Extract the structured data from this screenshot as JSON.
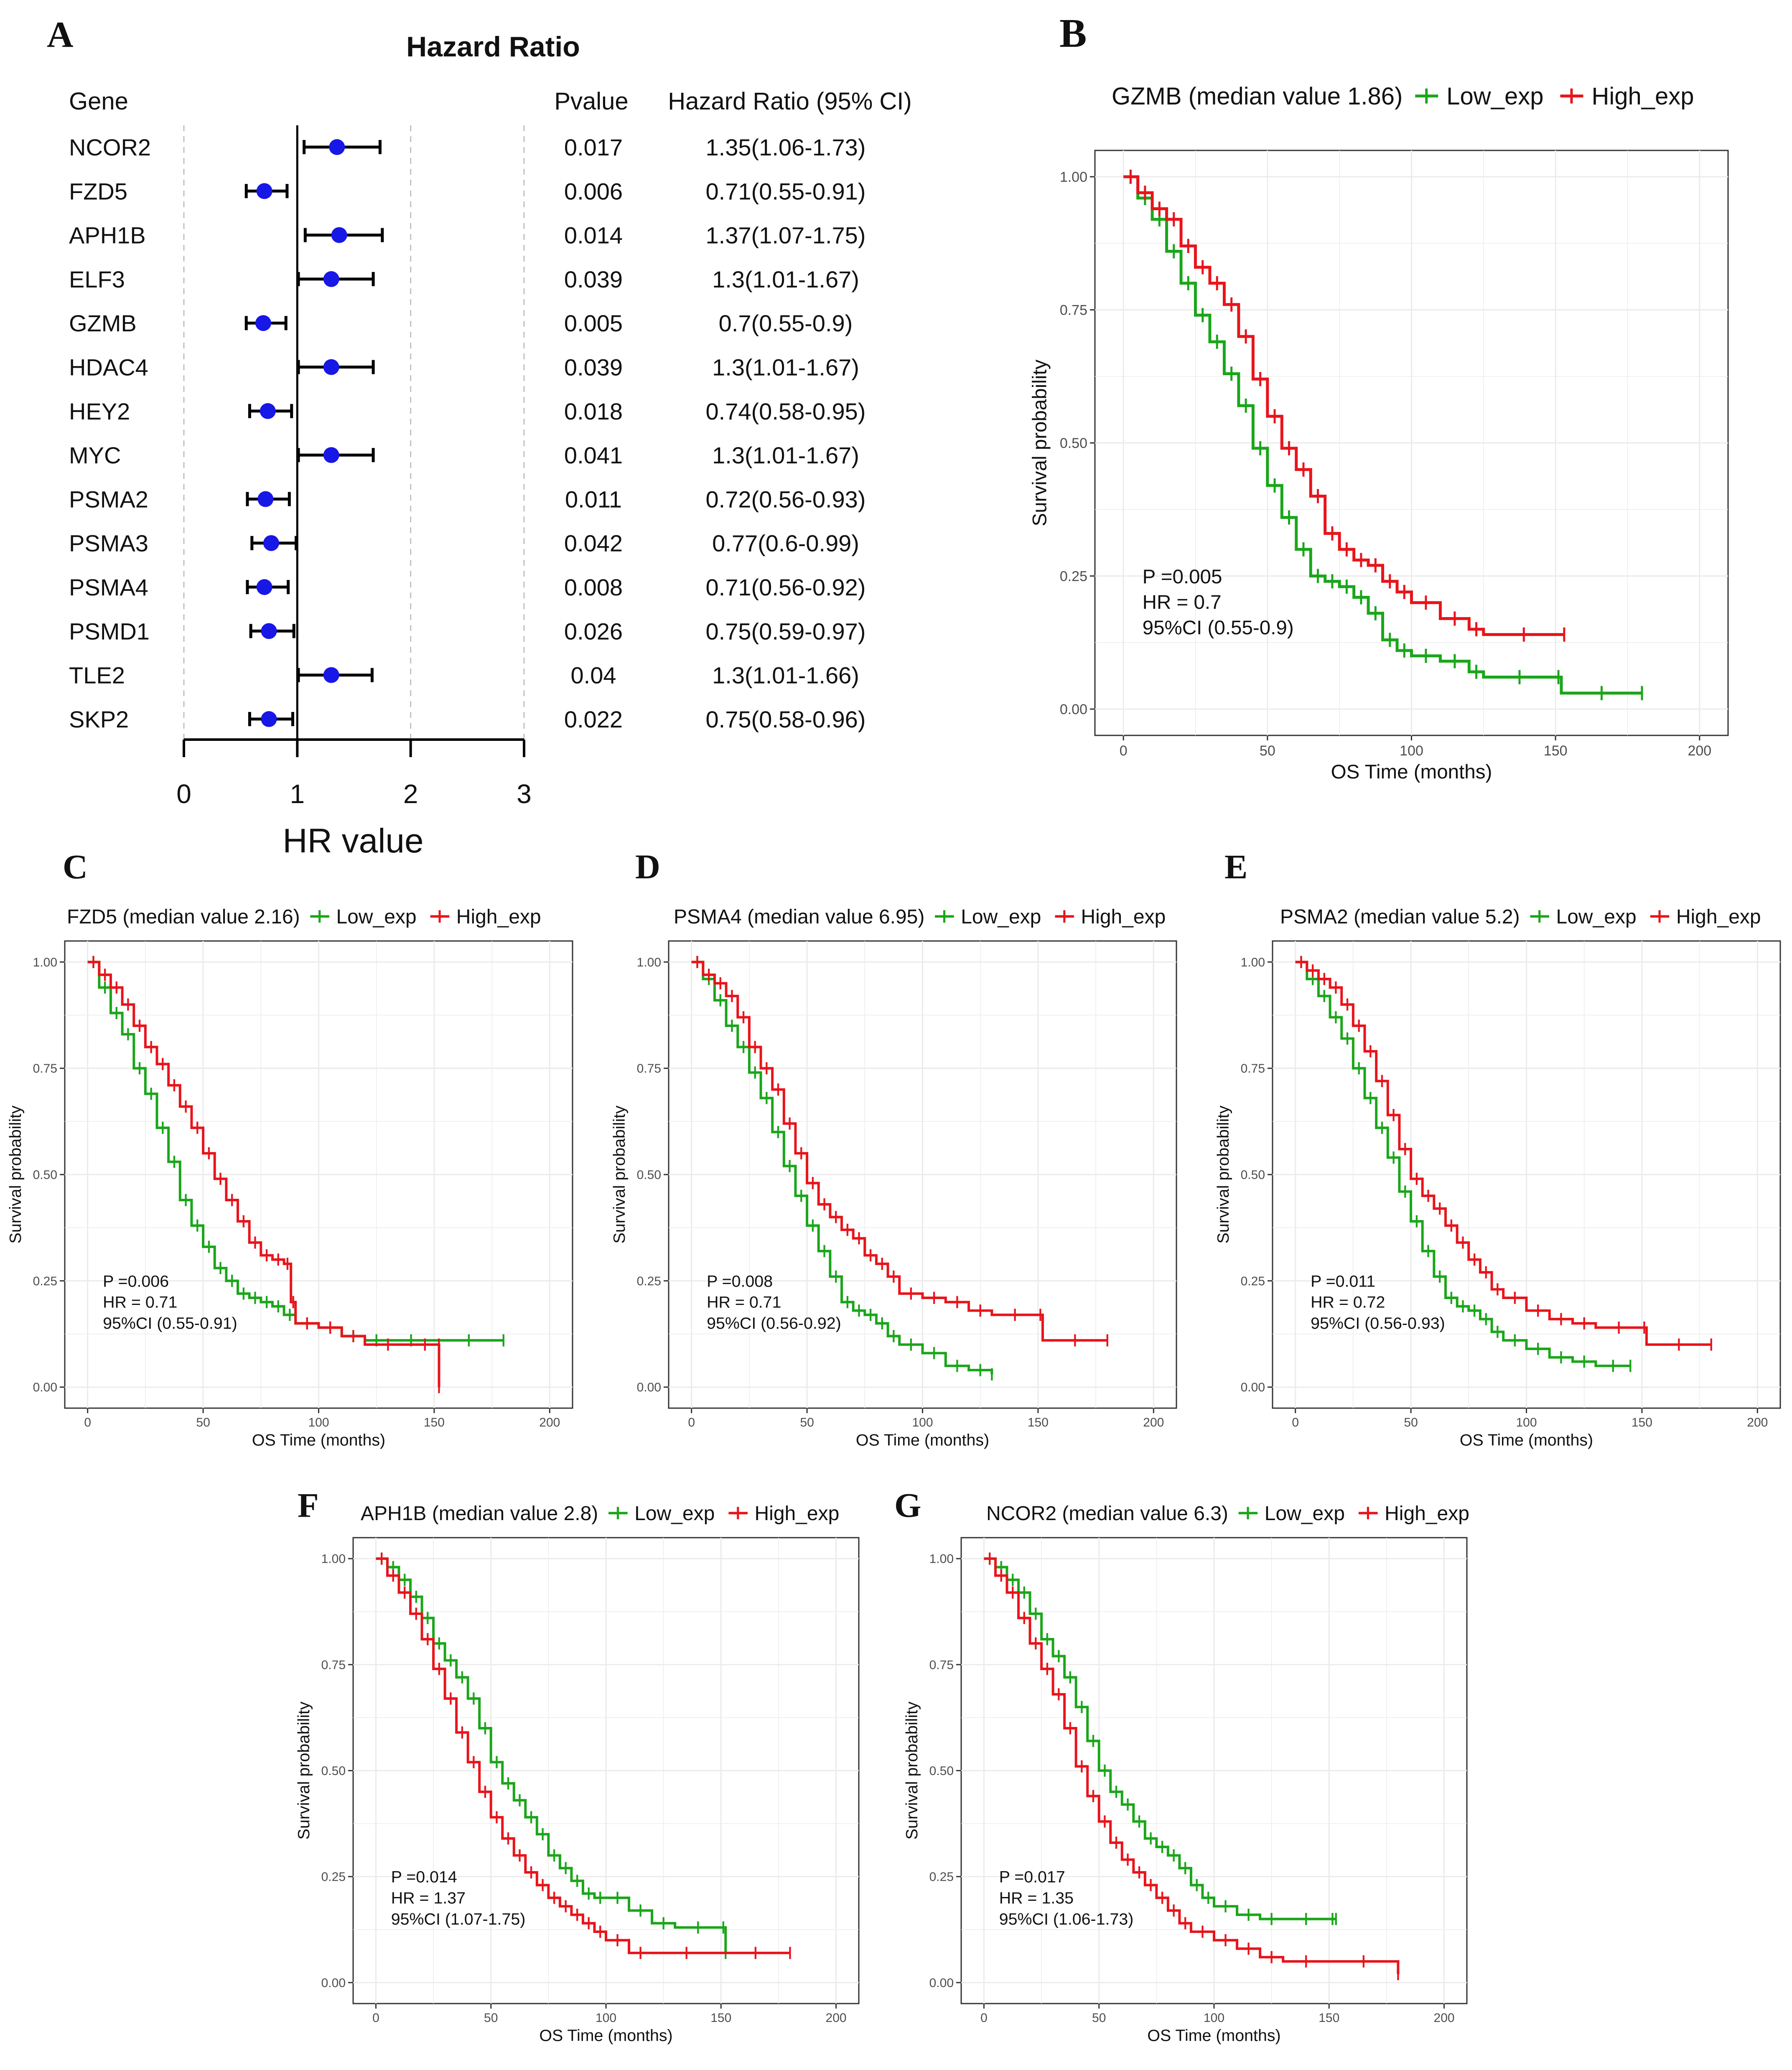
{
  "colors": {
    "low": "#1aa61a",
    "high": "#e8141b",
    "point": "#1717e6",
    "frame": "#333333",
    "grid": "#ebebeb",
    "axis_text": "#4d4d4d",
    "dashed": "#bfbfbf"
  },
  "forest": {
    "panel_letter": "A",
    "title": "Hazard Ratio",
    "col_gene": "Gene",
    "col_pvalue": "Pvalue",
    "col_hr": "Hazard Ratio (95% CI)",
    "xlabel": "HR value",
    "ticks": [
      "0",
      "1",
      "2",
      "3"
    ],
    "rows": [
      {
        "gene": "NCOR2",
        "pvalue": "0.017",
        "hr_text": "1.35(1.06-1.73)"
      },
      {
        "gene": "FZD5",
        "pvalue": "0.006",
        "hr_text": "0.71(0.55-0.91)"
      },
      {
        "gene": "APH1B",
        "pvalue": "0.014",
        "hr_text": "1.37(1.07-1.75)"
      },
      {
        "gene": "ELF3",
        "pvalue": "0.039",
        "hr_text": "1.3(1.01-1.67)"
      },
      {
        "gene": "GZMB",
        "pvalue": "0.005",
        "hr_text": "0.7(0.55-0.9)"
      },
      {
        "gene": "HDAC4",
        "pvalue": "0.039",
        "hr_text": "1.3(1.01-1.67)"
      },
      {
        "gene": "HEY2",
        "pvalue": "0.018",
        "hr_text": "0.74(0.58-0.95)"
      },
      {
        "gene": "MYC",
        "pvalue": "0.041",
        "hr_text": "1.3(1.01-1.67)"
      },
      {
        "gene": "PSMA2",
        "pvalue": "0.011",
        "hr_text": "0.72(0.56-0.93)"
      },
      {
        "gene": "PSMA3",
        "pvalue": "0.042",
        "hr_text": "0.77(0.6-0.99)"
      },
      {
        "gene": "PSMA4",
        "pvalue": "0.008",
        "hr_text": "0.71(0.56-0.92)"
      },
      {
        "gene": "PSMD1",
        "pvalue": "0.026",
        "hr_text": "0.75(0.59-0.97)"
      },
      {
        "gene": "TLE2",
        "pvalue": "0.04",
        "hr_text": "1.3(1.01-1.66)"
      },
      {
        "gene": "SKP2",
        "pvalue": "0.022",
        "hr_text": "0.75(0.58-0.96)"
      }
    ]
  },
  "km_common": {
    "xlabel": "OS Time (months)",
    "ylabel": "Survival probability",
    "low_label": "Low_exp",
    "high_label": "High_exp",
    "xticks": [
      "0",
      "50",
      "100",
      "150",
      "200"
    ],
    "yticks": [
      "0.00",
      "0.25",
      "0.50",
      "0.75",
      "1.00"
    ]
  },
  "panels": {
    "B": {
      "letter": "B",
      "title": "GZMB (median value 1.86)",
      "p": "P =0.005",
      "hr": "HR = 0.7",
      "ci": "95%CI (0.55-0.9)"
    },
    "C": {
      "letter": "C",
      "title": "FZD5 (median value 2.16)",
      "p": "P =0.006",
      "hr": "HR = 0.71",
      "ci": "95%CI (0.55-0.91)"
    },
    "D": {
      "letter": "D",
      "title": "PSMA4 (median value 6.95)",
      "p": "P =0.008",
      "hr": "HR = 0.71",
      "ci": "95%CI (0.56-0.92)"
    },
    "E": {
      "letter": "E",
      "title": "PSMA2 (median value 5.2)",
      "p": "P =0.011",
      "hr": "HR = 0.72",
      "ci": "95%CI (0.56-0.93)"
    },
    "F": {
      "letter": "F",
      "title": "APH1B (median value 2.8)",
      "p": "P =0.014",
      "hr": "HR = 1.37",
      "ci": "95%CI (1.07-1.75)"
    },
    "G": {
      "letter": "G",
      "title": "NCOR2 (median value 6.3)",
      "p": "P =0.017",
      "hr": "HR = 1.35",
      "ci": "95%CI (1.06-1.73)"
    }
  },
  "chart_data": [
    {
      "type": "forest",
      "id": "A",
      "title": "Hazard Ratio",
      "xlabel": "HR value",
      "xlim": [
        0,
        3
      ],
      "reference_line": 1,
      "genes": [
        "NCOR2",
        "FZD5",
        "APH1B",
        "ELF3",
        "GZMB",
        "HDAC4",
        "HEY2",
        "MYC",
        "PSMA2",
        "PSMA3",
        "PSMA4",
        "PSMD1",
        "TLE2",
        "SKP2"
      ],
      "hr": [
        1.35,
        0.71,
        1.37,
        1.3,
        0.7,
        1.3,
        0.74,
        1.3,
        0.72,
        0.77,
        0.71,
        0.75,
        1.3,
        0.75
      ],
      "lower": [
        1.06,
        0.55,
        1.07,
        1.01,
        0.55,
        1.01,
        0.58,
        1.01,
        0.56,
        0.6,
        0.56,
        0.59,
        1.01,
        0.58
      ],
      "upper": [
        1.73,
        0.91,
        1.75,
        1.67,
        0.9,
        1.67,
        0.95,
        1.67,
        0.93,
        0.99,
        0.92,
        0.97,
        1.66,
        0.96
      ],
      "pvalue": [
        0.017,
        0.006,
        0.014,
        0.039,
        0.005,
        0.039,
        0.018,
        0.041,
        0.011,
        0.042,
        0.008,
        0.026,
        0.04,
        0.022
      ]
    },
    {
      "type": "line",
      "id": "B",
      "title": "GZMB (median value 1.86)",
      "xlabel": "OS Time (months)",
      "ylabel": "Survival probability",
      "xlim": [
        0,
        200
      ],
      "ylim": [
        0,
        1
      ],
      "series": [
        {
          "name": "Low_exp",
          "x": [
            0,
            5,
            10,
            15,
            20,
            25,
            30,
            35,
            40,
            45,
            50,
            55,
            60,
            65,
            70,
            75,
            80,
            85,
            90,
            95,
            100,
            110,
            120,
            125,
            150,
            152,
            180
          ],
          "y": [
            1,
            0.96,
            0.92,
            0.86,
            0.8,
            0.74,
            0.69,
            0.63,
            0.57,
            0.49,
            0.42,
            0.36,
            0.3,
            0.25,
            0.24,
            0.23,
            0.21,
            0.18,
            0.13,
            0.11,
            0.1,
            0.09,
            0.07,
            0.06,
            0.06,
            0.03,
            0.03
          ]
        },
        {
          "name": "High_exp",
          "x": [
            0,
            5,
            10,
            15,
            20,
            25,
            30,
            35,
            40,
            45,
            50,
            55,
            60,
            65,
            70,
            75,
            80,
            85,
            90,
            95,
            100,
            110,
            120,
            125,
            153
          ],
          "y": [
            1,
            0.97,
            0.94,
            0.92,
            0.87,
            0.83,
            0.8,
            0.76,
            0.7,
            0.62,
            0.55,
            0.49,
            0.45,
            0.4,
            0.33,
            0.3,
            0.28,
            0.27,
            0.24,
            0.22,
            0.2,
            0.17,
            0.15,
            0.14,
            0.14
          ]
        }
      ],
      "annotations": [
        "P =0.005",
        "HR = 0.7",
        "95%CI (0.55-0.9)"
      ]
    },
    {
      "type": "line",
      "id": "C",
      "title": "FZD5 (median value 2.16)",
      "xlabel": "OS Time (months)",
      "ylabel": "Survival probability",
      "xlim": [
        0,
        200
      ],
      "ylim": [
        0,
        1
      ],
      "series": [
        {
          "name": "Low_exp",
          "x": [
            0,
            5,
            10,
            15,
            20,
            25,
            30,
            35,
            40,
            45,
            50,
            55,
            60,
            65,
            70,
            75,
            80,
            85,
            90,
            100,
            110,
            120,
            130,
            150,
            180
          ],
          "y": [
            1,
            0.94,
            0.88,
            0.83,
            0.75,
            0.69,
            0.61,
            0.53,
            0.44,
            0.38,
            0.33,
            0.28,
            0.25,
            0.22,
            0.21,
            0.2,
            0.19,
            0.17,
            0.15,
            0.14,
            0.12,
            0.11,
            0.11,
            0.11,
            0.11
          ]
        },
        {
          "name": "High_exp",
          "x": [
            0,
            5,
            10,
            15,
            20,
            25,
            30,
            35,
            40,
            45,
            50,
            55,
            60,
            65,
            70,
            75,
            80,
            85,
            88,
            90,
            100,
            110,
            120,
            140,
            152,
            152.1
          ],
          "y": [
            1,
            0.97,
            0.94,
            0.9,
            0.85,
            0.8,
            0.76,
            0.71,
            0.66,
            0.61,
            0.55,
            0.49,
            0.44,
            0.39,
            0.34,
            0.31,
            0.3,
            0.29,
            0.2,
            0.15,
            0.14,
            0.12,
            0.1,
            0.1,
            0.1,
            0
          ]
        }
      ],
      "annotations": [
        "P =0.006",
        "HR = 0.71",
        "95%CI (0.55-0.91)"
      ]
    },
    {
      "type": "line",
      "id": "D",
      "title": "PSMA4 (median value 6.95)",
      "xlabel": "OS Time (months)",
      "ylabel": "Survival probability",
      "xlim": [
        0,
        200
      ],
      "ylim": [
        0,
        1
      ],
      "series": [
        {
          "name": "Low_exp",
          "x": [
            0,
            5,
            10,
            15,
            20,
            25,
            30,
            35,
            40,
            45,
            50,
            55,
            60,
            65,
            70,
            75,
            80,
            85,
            90,
            100,
            110,
            120,
            130
          ],
          "y": [
            1,
            0.96,
            0.91,
            0.85,
            0.8,
            0.74,
            0.68,
            0.6,
            0.52,
            0.45,
            0.38,
            0.32,
            0.26,
            0.2,
            0.18,
            0.17,
            0.15,
            0.12,
            0.1,
            0.08,
            0.05,
            0.04,
            0.03
          ]
        },
        {
          "name": "High_exp",
          "x": [
            0,
            5,
            10,
            15,
            20,
            25,
            30,
            35,
            40,
            45,
            50,
            55,
            60,
            65,
            70,
            75,
            80,
            85,
            90,
            100,
            110,
            120,
            130,
            150,
            152,
            180
          ],
          "y": [
            1,
            0.97,
            0.95,
            0.92,
            0.87,
            0.8,
            0.75,
            0.7,
            0.62,
            0.55,
            0.48,
            0.43,
            0.4,
            0.37,
            0.35,
            0.31,
            0.29,
            0.26,
            0.22,
            0.21,
            0.2,
            0.18,
            0.17,
            0.17,
            0.11,
            0.11
          ]
        }
      ],
      "annotations": [
        "P =0.008",
        "HR = 0.71",
        "95%CI (0.56-0.92)"
      ]
    },
    {
      "type": "line",
      "id": "E",
      "title": "PSMA2 (median value 5.2)",
      "xlabel": "OS Time (months)",
      "ylabel": "Survival probability",
      "xlim": [
        0,
        200
      ],
      "ylim": [
        0,
        1
      ],
      "series": [
        {
          "name": "Low_exp",
          "x": [
            0,
            5,
            10,
            15,
            20,
            25,
            30,
            35,
            40,
            45,
            50,
            55,
            60,
            65,
            70,
            75,
            80,
            85,
            90,
            100,
            110,
            120,
            130,
            145
          ],
          "y": [
            1,
            0.96,
            0.92,
            0.87,
            0.82,
            0.75,
            0.68,
            0.61,
            0.54,
            0.46,
            0.39,
            0.32,
            0.26,
            0.21,
            0.19,
            0.18,
            0.16,
            0.13,
            0.11,
            0.09,
            0.07,
            0.06,
            0.05,
            0.05
          ]
        },
        {
          "name": "High_exp",
          "x": [
            0,
            5,
            10,
            15,
            20,
            25,
            30,
            35,
            40,
            45,
            50,
            55,
            60,
            65,
            70,
            75,
            80,
            85,
            90,
            100,
            110,
            120,
            130,
            150,
            152,
            180
          ],
          "y": [
            1,
            0.98,
            0.96,
            0.94,
            0.9,
            0.85,
            0.79,
            0.72,
            0.64,
            0.56,
            0.49,
            0.45,
            0.42,
            0.38,
            0.34,
            0.3,
            0.27,
            0.23,
            0.21,
            0.18,
            0.16,
            0.15,
            0.14,
            0.14,
            0.1,
            0.1
          ]
        }
      ],
      "annotations": [
        "P =0.011",
        "HR = 0.72",
        "95%CI (0.56-0.93)"
      ]
    },
    {
      "type": "line",
      "id": "F",
      "title": "APH1B (median value 2.8)",
      "xlabel": "OS Time (months)",
      "ylabel": "Survival probability",
      "xlim": [
        0,
        200
      ],
      "ylim": [
        0,
        1
      ],
      "series": [
        {
          "name": "Low_exp",
          "x": [
            0,
            5,
            10,
            15,
            20,
            25,
            30,
            35,
            40,
            45,
            50,
            55,
            60,
            65,
            70,
            75,
            80,
            85,
            90,
            95,
            100,
            110,
            120,
            130,
            150,
            152
          ],
          "y": [
            1,
            0.98,
            0.95,
            0.91,
            0.86,
            0.8,
            0.76,
            0.72,
            0.67,
            0.6,
            0.52,
            0.47,
            0.43,
            0.39,
            0.35,
            0.3,
            0.27,
            0.24,
            0.21,
            0.2,
            0.2,
            0.17,
            0.14,
            0.13,
            0.13,
            0.07
          ]
        },
        {
          "name": "High_exp",
          "x": [
            0,
            5,
            10,
            15,
            20,
            25,
            30,
            35,
            40,
            45,
            50,
            55,
            60,
            65,
            70,
            75,
            80,
            85,
            90,
            95,
            100,
            110,
            120,
            150,
            180
          ],
          "y": [
            1,
            0.96,
            0.92,
            0.87,
            0.81,
            0.74,
            0.67,
            0.59,
            0.52,
            0.45,
            0.39,
            0.34,
            0.3,
            0.26,
            0.23,
            0.2,
            0.18,
            0.16,
            0.14,
            0.12,
            0.1,
            0.07,
            0.07,
            0.07,
            0.07
          ]
        }
      ],
      "annotations": [
        "P =0.014",
        "HR = 1.37",
        "95%CI (1.07-1.75)"
      ]
    },
    {
      "type": "line",
      "id": "G",
      "title": "NCOR2 (median value 6.3)",
      "xlabel": "OS Time (months)",
      "ylabel": "Survival probability",
      "xlim": [
        0,
        200
      ],
      "ylim": [
        0,
        1
      ],
      "series": [
        {
          "name": "Low_exp",
          "x": [
            0,
            5,
            10,
            15,
            20,
            25,
            30,
            35,
            40,
            45,
            50,
            55,
            60,
            65,
            70,
            75,
            80,
            85,
            90,
            95,
            100,
            110,
            120,
            130,
            150,
            153
          ],
          "y": [
            1,
            0.98,
            0.95,
            0.92,
            0.87,
            0.81,
            0.77,
            0.72,
            0.65,
            0.57,
            0.5,
            0.45,
            0.42,
            0.38,
            0.34,
            0.32,
            0.3,
            0.27,
            0.23,
            0.2,
            0.18,
            0.16,
            0.15,
            0.15,
            0.15,
            0.15
          ]
        },
        {
          "name": "High_exp",
          "x": [
            0,
            5,
            10,
            15,
            20,
            25,
            30,
            35,
            40,
            45,
            50,
            55,
            60,
            65,
            70,
            75,
            80,
            85,
            90,
            100,
            110,
            120,
            130,
            150,
            180
          ],
          "y": [
            1,
            0.96,
            0.92,
            0.86,
            0.8,
            0.74,
            0.68,
            0.6,
            0.51,
            0.44,
            0.38,
            0.33,
            0.29,
            0.26,
            0.23,
            0.2,
            0.17,
            0.14,
            0.12,
            0.1,
            0.08,
            0.06,
            0.05,
            0.05,
            0.02
          ]
        }
      ],
      "annotations": [
        "P =0.017",
        "HR = 1.35",
        "95%CI (1.06-1.73)"
      ]
    }
  ]
}
